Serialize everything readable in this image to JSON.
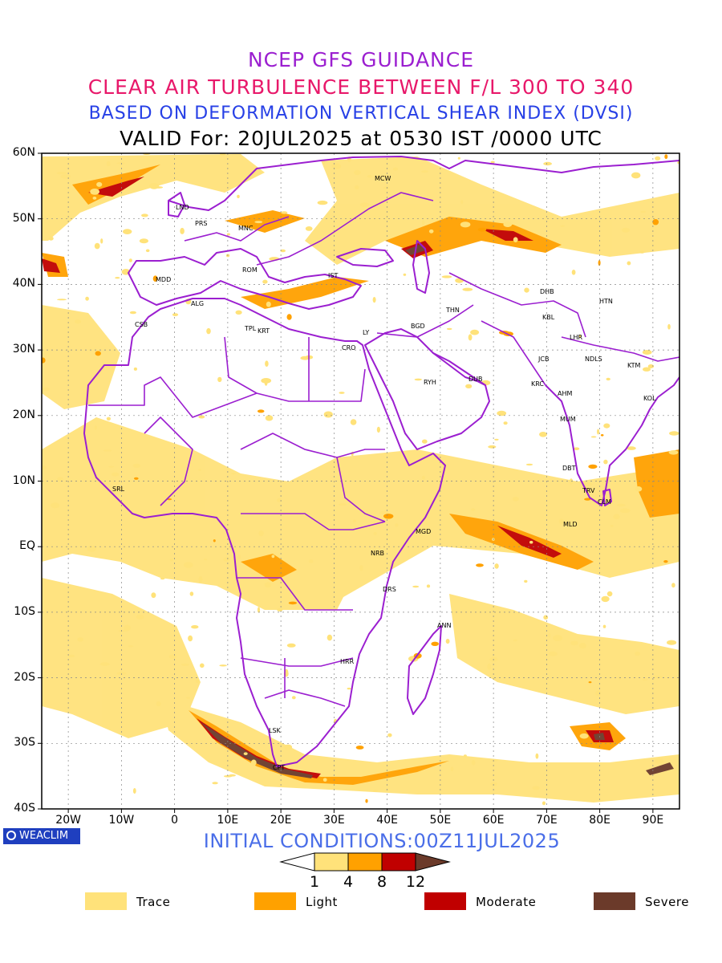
{
  "titles": {
    "line1": "NCEP GFS GUIDANCE",
    "line2": "CLEAR AIR TURBULENCE BETWEEN F/L 300 TO 340",
    "line3": "BASED ON DEFORMATION VERTICAL SHEAR INDEX (DVSI)",
    "line4": "VALID For: 20JUL2025 at 0530 IST /0000 UTC"
  },
  "colors": {
    "title1": "#9b1fd0",
    "title2": "#e8186a",
    "title3": "#2740e6",
    "trace": "#ffe27a",
    "light": "#ffa100",
    "moderate": "#c00000",
    "severe": "#6b3a2a",
    "borders": "#9b1fd0",
    "init": "#4a6ee8",
    "logo_bg": "#1f3fbf"
  },
  "map": {
    "lat_labels": [
      "60N",
      "50N",
      "40N",
      "30N",
      "20N",
      "10N",
      "EQ",
      "10S",
      "20S",
      "30S",
      "40S"
    ],
    "lon_labels": [
      "20W",
      "10W",
      "0",
      "10E",
      "20E",
      "30E",
      "40E",
      "50E",
      "60E",
      "70E",
      "80E",
      "90E"
    ],
    "cities": [
      "MCW",
      "LND",
      "PRS",
      "MNC",
      "MDD",
      "ROM",
      "IST",
      "ALG",
      "DHB",
      "HTN",
      "THN",
      "KBL",
      "CSB",
      "TPL",
      "KRT",
      "LY",
      "BGD",
      "CRO",
      "LHR",
      "JCB",
      "NDLS",
      "KTM",
      "RYH",
      "DUB",
      "KRC",
      "AHM",
      "KOL",
      "MUM",
      "DBT",
      "SRL",
      "TRV",
      "CLM",
      "MLD",
      "MGD",
      "NRB",
      "DRS",
      "ANN",
      "HRR",
      "LSK",
      "CPT"
    ]
  },
  "init_conditions": "INITIAL CONDITIONS:00Z11JUL2025",
  "logo": {
    "text": "WEACLIM",
    "icon": "globe-icon"
  },
  "scale": {
    "ticks": [
      "1",
      "4",
      "8",
      "12"
    ]
  },
  "legend": [
    {
      "label": "Trace",
      "color": "#ffe27a"
    },
    {
      "label": "Light",
      "color": "#ffa100"
    },
    {
      "label": "Moderate",
      "color": "#c00000"
    },
    {
      "label": "Severe",
      "color": "#6b3a2a"
    }
  ]
}
